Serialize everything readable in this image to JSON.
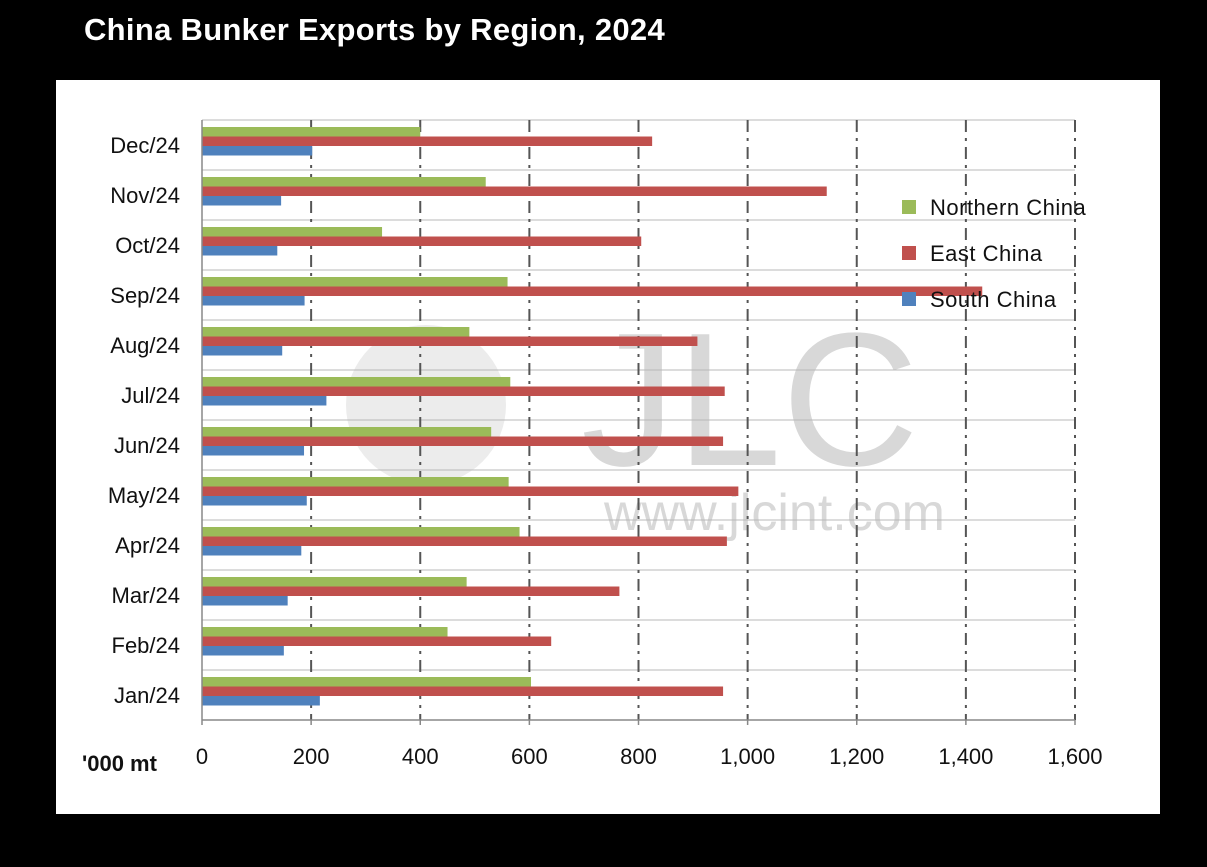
{
  "chart_data": {
    "type": "bar",
    "orientation": "horizontal",
    "title": "China Bunker Exports by Region, 2024",
    "xlabel": "'000 mt",
    "ylabel": "",
    "xlim": [
      0,
      1600
    ],
    "xticks": [
      0,
      200,
      400,
      600,
      800,
      1000,
      1200,
      1400,
      1600
    ],
    "xtick_labels": [
      "0",
      "200",
      "400",
      "600",
      "800",
      "1,000",
      "1,200",
      "1,400",
      "1,600"
    ],
    "categories": [
      "Dec/24",
      "Nov/24",
      "Oct/24",
      "Sep/24",
      "Aug/24",
      "Jul/24",
      "Jun/24",
      "May/24",
      "Apr/24",
      "Mar/24",
      "Feb/24",
      "Jan/24"
    ],
    "series": [
      {
        "name": "Northern China",
        "color": "#9bbb59",
        "values": [
          400,
          520,
          330,
          560,
          490,
          565,
          530,
          562,
          582,
          485,
          450,
          603
        ]
      },
      {
        "name": "East China",
        "color": "#c0504d",
        "values": [
          825,
          1145,
          805,
          1430,
          908,
          958,
          955,
          983,
          962,
          765,
          640,
          955
        ]
      },
      {
        "name": "South China",
        "color": "#4f81bd",
        "values": [
          202,
          145,
          138,
          188,
          147,
          228,
          187,
          192,
          182,
          157,
          150,
          216
        ]
      }
    ],
    "legend_position": "right",
    "grid": "vertical dash-dot",
    "watermark": {
      "logo_text": "JLC",
      "url_text": "www.jlcint.com"
    }
  }
}
